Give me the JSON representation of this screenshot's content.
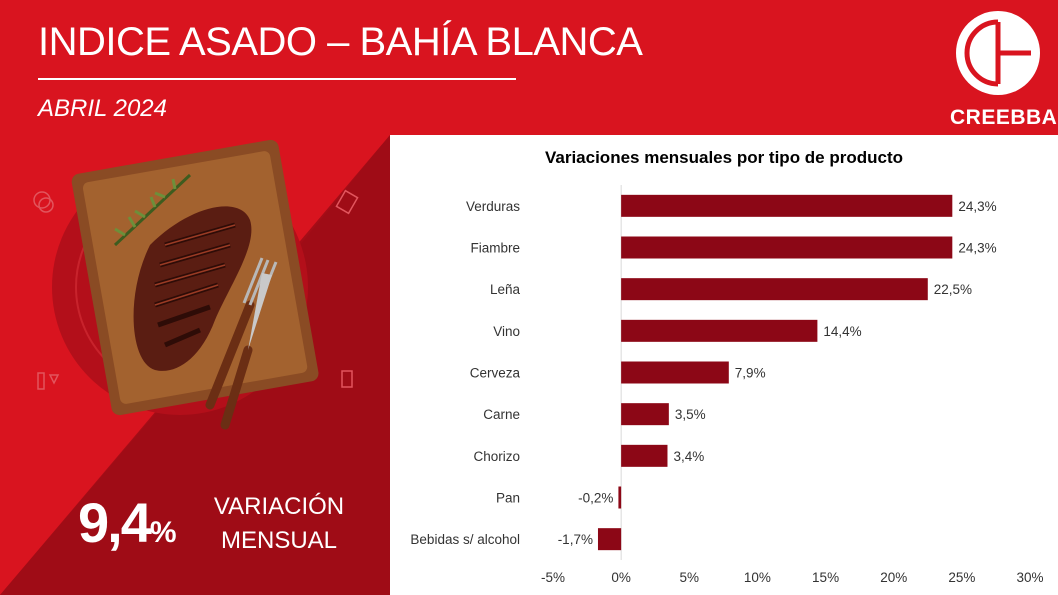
{
  "header": {
    "title": "INDICE ASADO – BAHÍA BLANCA",
    "subtitle": "ABRIL 2024",
    "logo_text": "CREEBBA"
  },
  "summary": {
    "value": "9,4",
    "unit": "%",
    "label_line1": "VARIACIÓN",
    "label_line2": "MENSUAL"
  },
  "colors": {
    "background": "#d9141f",
    "bar": "#8c0716",
    "panel_dark": "#a50d17"
  },
  "chart_data": {
    "type": "bar",
    "orientation": "horizontal",
    "title": "Variaciones mensuales por tipo de producto",
    "categories": [
      "Verduras",
      "Fiambre",
      "Leña",
      "Vino",
      "Cerveza",
      "Carne",
      "Chorizo",
      "Pan",
      "Bebidas s/ alcohol"
    ],
    "values": [
      24.3,
      24.3,
      22.5,
      14.4,
      7.9,
      3.5,
      3.4,
      -0.2,
      -1.7
    ],
    "data_labels": [
      "24,3%",
      "24,3%",
      "22,5%",
      "14,4%",
      "7,9%",
      "3,5%",
      "3,4%",
      "-0,2%",
      "-1,7%"
    ],
    "xlim": [
      -5,
      30
    ],
    "x_ticks": [
      -5,
      0,
      5,
      10,
      15,
      20,
      25,
      30
    ],
    "x_tick_labels": [
      "-5%",
      "0%",
      "5%",
      "10%",
      "15%",
      "20%",
      "25%",
      "30%"
    ],
    "grid": false,
    "legend": "none"
  }
}
